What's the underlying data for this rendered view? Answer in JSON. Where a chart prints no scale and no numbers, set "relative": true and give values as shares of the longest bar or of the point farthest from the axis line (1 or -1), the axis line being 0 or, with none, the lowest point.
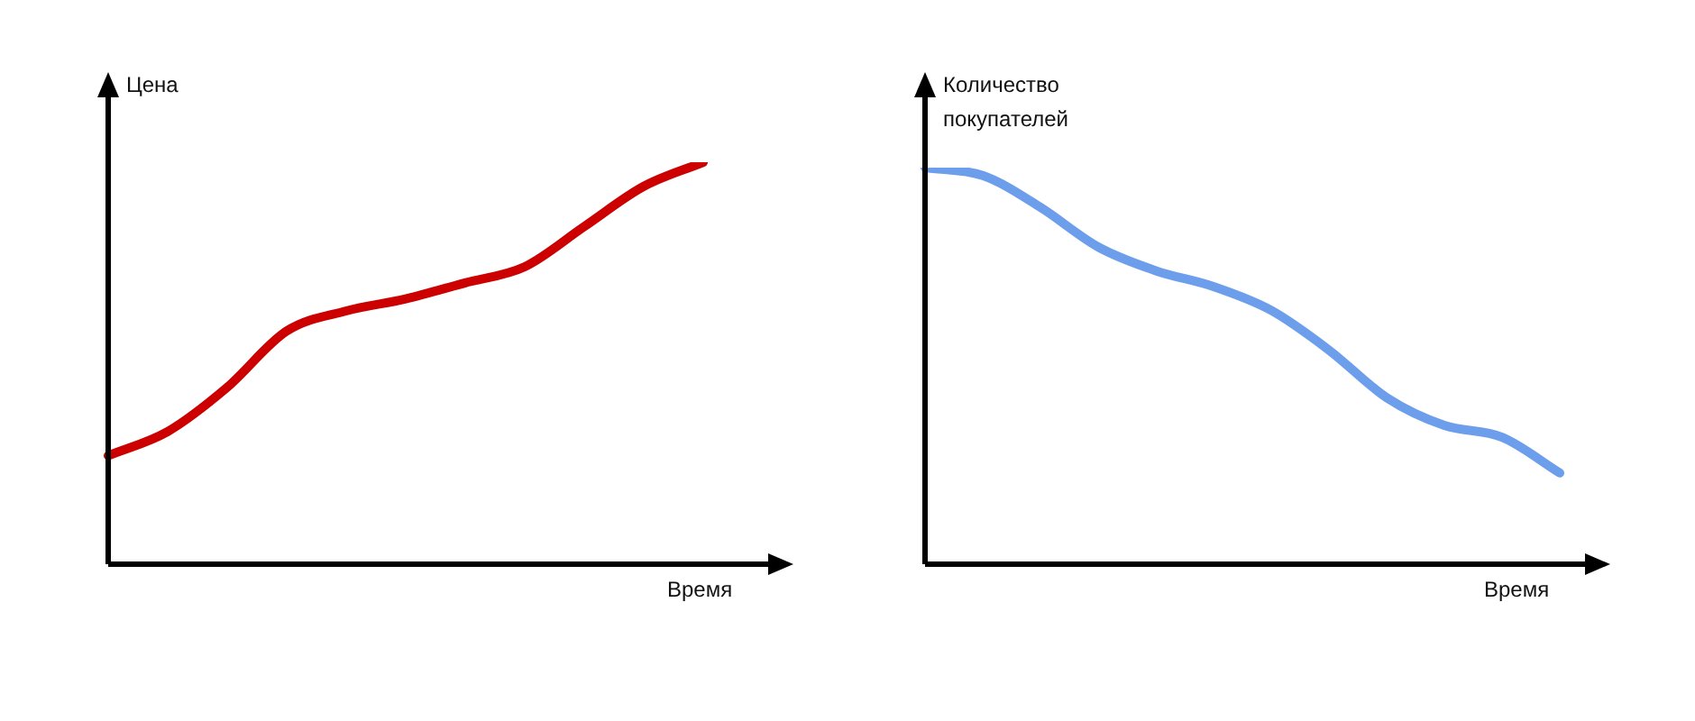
{
  "chart_data": [
    {
      "type": "line",
      "ylabel": "Цена",
      "xlabel": "Время",
      "relative": true,
      "marker": "none",
      "categories": [
        null,
        null,
        null,
        null,
        null,
        null,
        null,
        null,
        null,
        null,
        null
      ],
      "series": [
        {
          "color": "#cc0000",
          "values": [
            0.27,
            0.33,
            0.44,
            0.58,
            0.63,
            0.66,
            0.7,
            0.74,
            0.84,
            0.94,
            1.0
          ]
        }
      ]
    },
    {
      "type": "line",
      "ylabel": "Количество покупателей",
      "xlabel": "Время",
      "relative": true,
      "marker": "none",
      "categories": [
        null,
        null,
        null,
        null,
        null,
        null,
        null,
        null,
        null,
        null,
        null,
        null
      ],
      "series": [
        {
          "color": "#6d9eeb",
          "values": [
            1.0,
            0.98,
            0.9,
            0.8,
            0.74,
            0.7,
            0.64,
            0.54,
            0.42,
            0.35,
            0.32,
            0.23
          ]
        }
      ]
    }
  ]
}
